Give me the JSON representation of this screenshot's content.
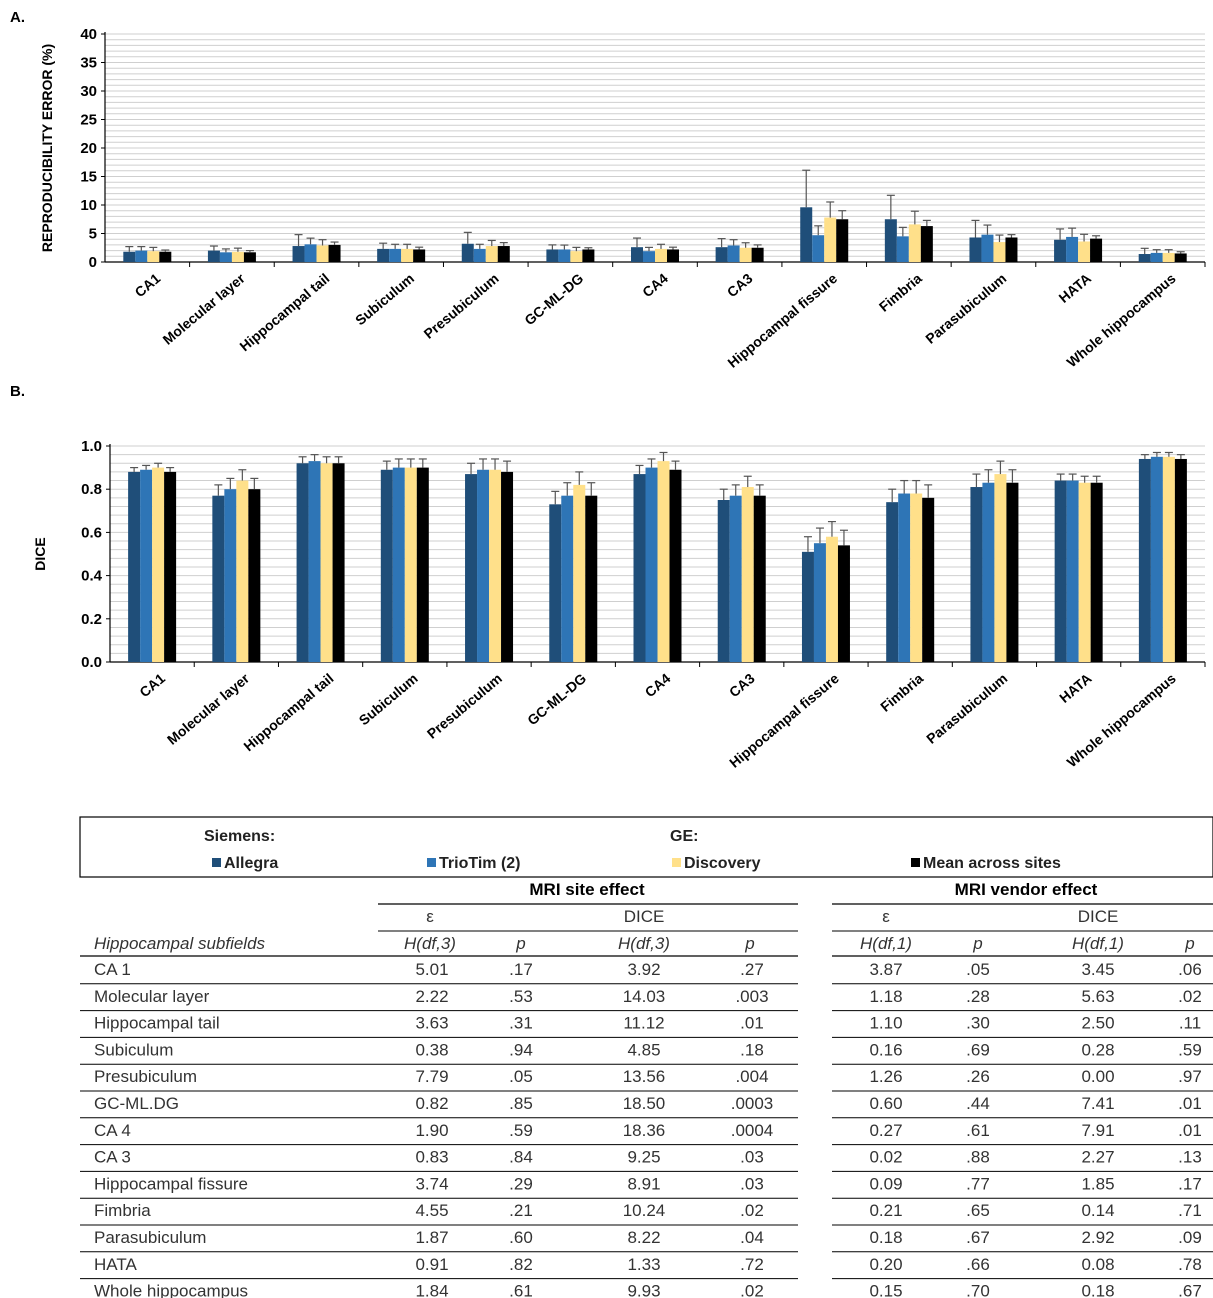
{
  "chart_data": [
    {
      "panel": "A.",
      "type": "bar",
      "ylabel": "REPRODUCIBILITY  ERROR  (%)",
      "ylim": [
        0,
        40
      ],
      "yticks": [
        "0",
        "5",
        "10",
        "15",
        "20",
        "25",
        "30",
        "35",
        "40"
      ],
      "grid": true,
      "categories": [
        "CA1",
        "Molecular layer",
        "Hippocampal tail",
        "Subiculum",
        "Presubiculum",
        "GC-ML-DG",
        "CA4",
        "CA3",
        "Hippocampal fissure",
        "Fimbria",
        "Parasubiculum",
        "HATA",
        "Whole hippocampus"
      ],
      "series": [
        {
          "name": "Allegra",
          "values": [
            1.8,
            2.0,
            2.8,
            2.3,
            3.2,
            2.2,
            2.6,
            2.6,
            9.6,
            7.5,
            4.3,
            3.9,
            1.4
          ],
          "errors": [
            0.9,
            0.8,
            2.0,
            1.0,
            2.0,
            0.8,
            1.6,
            1.5,
            6.5,
            4.2,
            3.0,
            1.9,
            1.0
          ]
        },
        {
          "name": "TrioTim (2)",
          "values": [
            2.0,
            1.7,
            3.1,
            2.3,
            2.3,
            2.2,
            1.9,
            2.9,
            4.7,
            4.5,
            4.8,
            4.4,
            1.6
          ]
        },
        {
          "name": "Discovery",
          "values": [
            1.9,
            1.8,
            2.9,
            2.3,
            2.8,
            1.9,
            2.3,
            2.5,
            7.8,
            6.6,
            3.5,
            3.6,
            1.6
          ]
        },
        {
          "name": "Mean across sites",
          "values": [
            1.8,
            1.7,
            3.0,
            2.2,
            2.8,
            2.2,
            2.2,
            2.5,
            7.5,
            6.3,
            4.3,
            4.1,
            1.5
          ],
          "errors": [
            0.3,
            0.3,
            0.5,
            0.4,
            0.6,
            0.3,
            0.4,
            0.5,
            1.5,
            1.0,
            0.5,
            0.5,
            0.3
          ]
        }
      ]
    },
    {
      "panel": "B.",
      "type": "bar",
      "ylabel": "DICE",
      "ylim": [
        0,
        1.0
      ],
      "yticks": [
        "0.0",
        "0.2",
        "0.4",
        "0.6",
        "0.8",
        "1.0"
      ],
      "grid": true,
      "categories": [
        "CA1",
        "Molecular layer",
        "Hippocampal tail",
        "Subiculum",
        "Presubiculum",
        "GC-ML-DG",
        "CA4",
        "CA3",
        "Hippocampal fissure",
        "Fimbria",
        "Parasubiculum",
        "HATA",
        "Whole hippocampus"
      ],
      "series": [
        {
          "name": "Allegra",
          "values": [
            0.88,
            0.77,
            0.92,
            0.89,
            0.87,
            0.73,
            0.87,
            0.75,
            0.51,
            0.74,
            0.81,
            0.84,
            0.94
          ]
        },
        {
          "name": "TrioTim (2)",
          "values": [
            0.89,
            0.8,
            0.93,
            0.9,
            0.89,
            0.77,
            0.9,
            0.77,
            0.55,
            0.78,
            0.83,
            0.84,
            0.95
          ]
        },
        {
          "name": "Discovery",
          "values": [
            0.9,
            0.84,
            0.92,
            0.9,
            0.89,
            0.82,
            0.93,
            0.81,
            0.58,
            0.78,
            0.87,
            0.83,
            0.95
          ]
        },
        {
          "name": "Mean across sites",
          "values": [
            0.88,
            0.8,
            0.92,
            0.9,
            0.88,
            0.77,
            0.89,
            0.77,
            0.54,
            0.76,
            0.83,
            0.83,
            0.94
          ]
        }
      ],
      "errors": [
        0.02,
        0.05,
        0.03,
        0.04,
        0.05,
        0.06,
        0.04,
        0.05,
        0.07,
        0.06,
        0.06,
        0.03,
        0.02
      ]
    }
  ],
  "labels": {
    "panelA": "A.",
    "panelB": "B."
  },
  "legend": {
    "siemens": "Siemens:",
    "ge": "GE:",
    "items": [
      {
        "label": "Allegra",
        "color": "#1f4e79"
      },
      {
        "label": "TrioTim (2)",
        "color": "#2e75b6"
      },
      {
        "label": "Discovery",
        "color": "#ffe08a"
      },
      {
        "label": "Mean across sites",
        "color": "#000000"
      }
    ]
  },
  "table": {
    "site_title": "MRI site effect",
    "vendor_title": "MRI vendor effect",
    "eps": "ε",
    "dice": "DICE",
    "col_first": "Hippocampal subfields",
    "site_H": "H(df,3)",
    "vendor_H": "H(df,1)",
    "p": "p",
    "rows": [
      [
        "CA 1",
        "5.01",
        ".17",
        "3.92",
        ".27",
        "3.87",
        ".05",
        "3.45",
        ".06"
      ],
      [
        "Molecular layer",
        "2.22",
        ".53",
        "14.03",
        ".003",
        "1.18",
        ".28",
        "5.63",
        ".02"
      ],
      [
        "Hippocampal tail",
        "3.63",
        ".31",
        "11.12",
        ".01",
        "1.10",
        ".30",
        "2.50",
        ".11"
      ],
      [
        "Subiculum",
        "0.38",
        ".94",
        "4.85",
        ".18",
        "0.16",
        ".69",
        "0.28",
        ".59"
      ],
      [
        "Presubiculum",
        "7.79",
        ".05",
        "13.56",
        ".004",
        "1.26",
        ".26",
        "0.00",
        ".97"
      ],
      [
        "GC-ML.DG",
        "0.82",
        ".85",
        "18.50",
        ".0003",
        "0.60",
        ".44",
        "7.41",
        ".01"
      ],
      [
        "CA 4",
        "1.90",
        ".59",
        "18.36",
        ".0004",
        "0.27",
        ".61",
        "7.91",
        ".01"
      ],
      [
        "CA 3",
        "0.83",
        ".84",
        "9.25",
        ".03",
        "0.02",
        ".88",
        "2.27",
        ".13"
      ],
      [
        "Hippocampal fissure",
        "3.74",
        ".29",
        "8.91",
        ".03",
        "0.09",
        ".77",
        "1.85",
        ".17"
      ],
      [
        "Fimbria",
        "4.55",
        ".21",
        "10.24",
        ".02",
        "0.21",
        ".65",
        "0.14",
        ".71"
      ],
      [
        "Parasubiculum",
        "1.87",
        ".60",
        "8.22",
        ".04",
        "0.18",
        ".67",
        "2.92",
        ".09"
      ],
      [
        "HATA",
        "0.91",
        ".82",
        "1.33",
        ".72",
        "0.20",
        ".66",
        "0.08",
        ".78"
      ],
      [
        "Whole hippocampus",
        "1.84",
        ".61",
        "9.93",
        ".02",
        "0.15",
        ".70",
        "0.18",
        ".67"
      ]
    ]
  }
}
